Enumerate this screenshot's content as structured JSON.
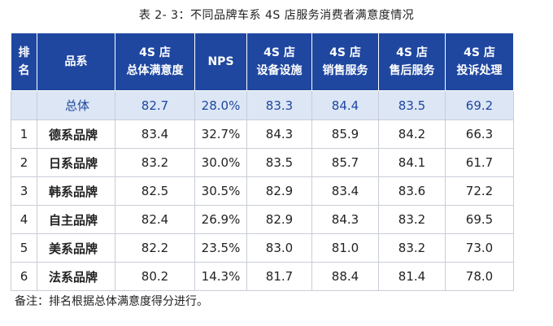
{
  "caption": "表 2- 3：不同品牌车系 4S 店服务消费者满意度情况",
  "table": {
    "headers": [
      [
        "排",
        "名"
      ],
      [
        "品系"
      ],
      [
        "4S 店",
        "总体满意度"
      ],
      [
        "NPS"
      ],
      [
        "4S 店",
        "设备设施"
      ],
      [
        "4S 店",
        "销售服务"
      ],
      [
        "4S 店",
        "售后服务"
      ],
      [
        "4S 店",
        "投诉处理"
      ]
    ],
    "total": [
      "",
      "总体",
      "82.7",
      "28.0%",
      "83.3",
      "84.4",
      "83.5",
      "69.2"
    ],
    "rows": [
      [
        "1",
        "德系品牌",
        "83.4",
        "32.7%",
        "84.3",
        "85.9",
        "84.2",
        "66.3"
      ],
      [
        "2",
        "日系品牌",
        "83.2",
        "30.0%",
        "83.5",
        "85.7",
        "84.1",
        "61.7"
      ],
      [
        "3",
        "韩系品牌",
        "82.5",
        "30.5%",
        "82.9",
        "83.4",
        "83.6",
        "72.2"
      ],
      [
        "4",
        "自主品牌",
        "82.4",
        "26.9%",
        "82.9",
        "84.3",
        "83.2",
        "69.5"
      ],
      [
        "5",
        "美系品牌",
        "82.2",
        "23.5%",
        "83.0",
        "81.0",
        "83.2",
        "73.0"
      ],
      [
        "6",
        "法系品牌",
        "80.2",
        "14.3%",
        "81.7",
        "88.4",
        "81.4",
        "78.0"
      ]
    ]
  },
  "note": "备注：排名根据总体满意度得分进行。",
  "colors": {
    "header_bg": "#1f47a0",
    "total_bg": "#dce6f5",
    "total_text": "#1f47a0"
  }
}
